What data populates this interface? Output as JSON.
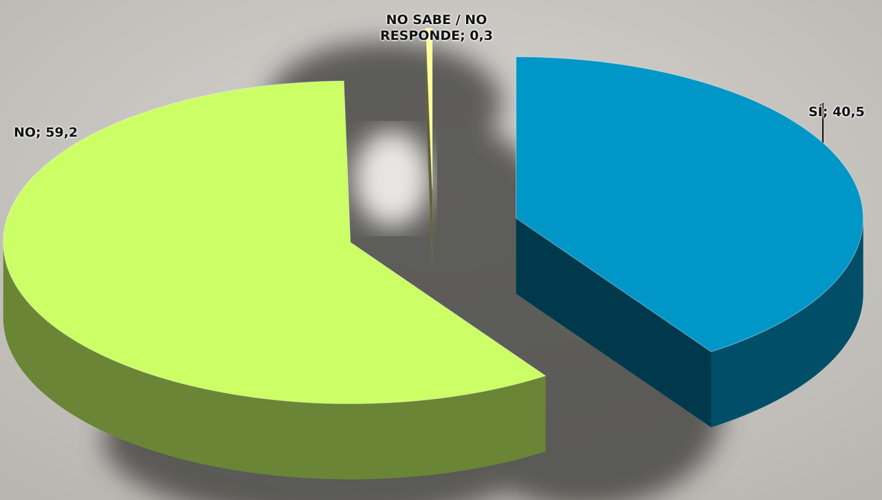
{
  "chart_data": {
    "type": "pie3d",
    "labels": [
      "SÍ; 40,5",
      "NO; 59,2",
      "NO SABE / NO RESPONDE; 0,3"
    ],
    "values": [
      40.5,
      59.2,
      0.3
    ],
    "colors": [
      "#0096c8",
      "#ccff66",
      "#ffff99"
    ]
  }
}
